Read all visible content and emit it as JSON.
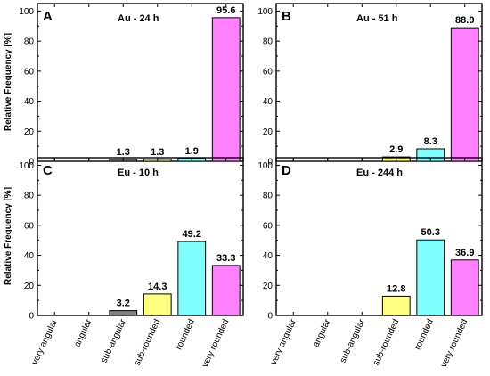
{
  "ylabel": "Relative Frequency [%]",
  "categories": [
    "very angular",
    "angular",
    "sub-angular",
    "sub-rounded",
    "rounded",
    "very rounded"
  ],
  "colors": [
    "#ffffff",
    "#ffffff",
    "#7f7f7f",
    "#ffff80",
    "#80ffff",
    "#ff80ff"
  ],
  "yticks": [
    "0",
    "20",
    "40",
    "60",
    "80",
    "100"
  ],
  "chart_data": [
    {
      "type": "bar",
      "panel": "A",
      "title": "Au - 24 h",
      "ylabel": "Relative Frequency [%]",
      "ylim": [
        0,
        105
      ],
      "categories": [
        "very angular",
        "angular",
        "sub-angular",
        "sub-rounded",
        "rounded",
        "very rounded"
      ],
      "values": [
        0,
        0,
        1.3,
        1.3,
        1.9,
        95.6
      ],
      "labels": [
        "",
        "",
        "1.3",
        "1.3",
        "1.9",
        "95.6"
      ]
    },
    {
      "type": "bar",
      "panel": "B",
      "title": "Au - 51 h",
      "ylim": [
        0,
        105
      ],
      "categories": [
        "very angular",
        "angular",
        "sub-angular",
        "sub-rounded",
        "rounded",
        "very rounded"
      ],
      "values": [
        0,
        0,
        0,
        2.9,
        8.3,
        88.9
      ],
      "labels": [
        "",
        "",
        "",
        "2.9",
        "8.3",
        "88.9"
      ]
    },
    {
      "type": "bar",
      "panel": "C",
      "title": "Eu - 10 h",
      "ylabel": "Relative Frequency [%]",
      "ylim": [
        0,
        105
      ],
      "categories": [
        "very angular",
        "angular",
        "sub-angular",
        "sub-rounded",
        "rounded",
        "very rounded"
      ],
      "values": [
        0,
        0,
        3.2,
        14.3,
        49.2,
        33.3
      ],
      "labels": [
        "",
        "",
        "3.2",
        "14.3",
        "49.2",
        "33.3"
      ]
    },
    {
      "type": "bar",
      "panel": "D",
      "title": "Eu - 244 h",
      "ylim": [
        0,
        105
      ],
      "categories": [
        "very angular",
        "angular",
        "sub-angular",
        "sub-rounded",
        "rounded",
        "very rounded"
      ],
      "values": [
        0,
        0,
        0,
        12.8,
        50.3,
        36.9
      ],
      "labels": [
        "",
        "",
        "",
        "12.8",
        "50.3",
        "36.9"
      ]
    }
  ]
}
